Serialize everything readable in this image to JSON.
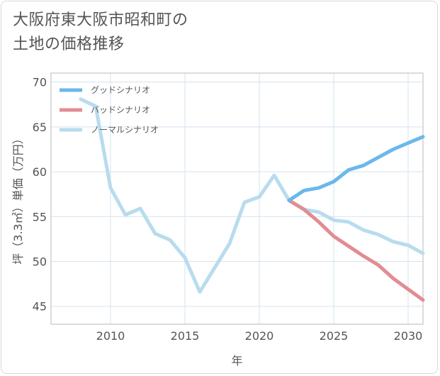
{
  "chart_data": {
    "type": "line",
    "title": "大阪府東大阪市昭和町の\n土地の価格推移",
    "xlabel": "年",
    "ylabel": "坪（3.3㎡）単価（万円）",
    "xlim": [
      2006,
      2031
    ],
    "ylim": [
      43,
      71
    ],
    "xticks": [
      2010,
      2015,
      2020,
      2025,
      2030
    ],
    "yticks": [
      45,
      50,
      55,
      60,
      65,
      70
    ],
    "grid": true,
    "legend_position": "top-left",
    "series": [
      {
        "name": "グッドシナリオ",
        "color": "#6bb8ea",
        "x": [
          2022,
          2023,
          2024,
          2025,
          2026,
          2027,
          2028,
          2029,
          2030,
          2031
        ],
        "values": [
          56.8,
          57.9,
          58.2,
          58.9,
          60.2,
          60.7,
          61.6,
          62.5,
          63.2,
          63.9
        ]
      },
      {
        "name": "バッドシナリオ",
        "color": "#e28c94",
        "x": [
          2022,
          2023,
          2024,
          2025,
          2026,
          2027,
          2028,
          2029,
          2030,
          2031
        ],
        "values": [
          56.8,
          55.8,
          54.4,
          52.8,
          51.7,
          50.6,
          49.6,
          48.1,
          46.9,
          45.7
        ]
      },
      {
        "name": "ノーマルシナリオ",
        "color": "#b8dcee",
        "x": [
          2008,
          2009,
          2010,
          2011,
          2012,
          2013,
          2014,
          2015,
          2016,
          2017,
          2018,
          2019,
          2020,
          2021,
          2022,
          2023,
          2024,
          2025,
          2026,
          2027,
          2028,
          2029,
          2030,
          2031
        ],
        "values": [
          68.1,
          67.3,
          58.2,
          55.2,
          55.9,
          53.1,
          52.4,
          50.4,
          46.6,
          49.3,
          52.0,
          56.6,
          57.2,
          59.6,
          56.8,
          55.8,
          55.5,
          54.6,
          54.4,
          53.5,
          53.0,
          52.2,
          51.8,
          50.9
        ]
      }
    ]
  }
}
